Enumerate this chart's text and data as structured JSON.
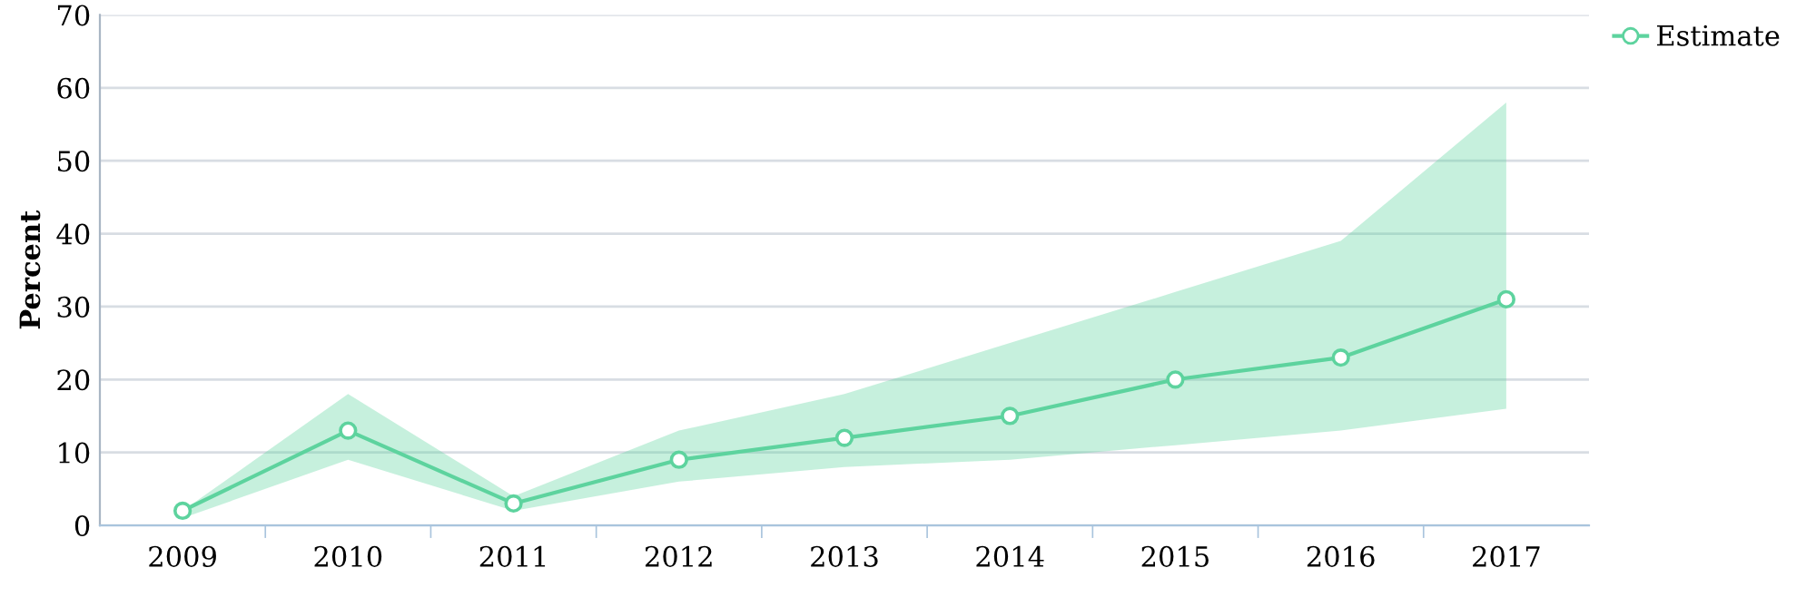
{
  "chart_data": {
    "type": "line",
    "ylabel": "Percent",
    "categories": [
      "2009",
      "2010",
      "2011",
      "2012",
      "2013",
      "2014",
      "2015",
      "2016",
      "2017"
    ],
    "series": [
      {
        "name": "Estimate",
        "color": "#5dd39e",
        "values": [
          2,
          13,
          3,
          9,
          12,
          15,
          20,
          23,
          31
        ],
        "lower": [
          1,
          9,
          2,
          6,
          8,
          9,
          11,
          13,
          16
        ],
        "upper": [
          2,
          18,
          4,
          13,
          18,
          25,
          32,
          39,
          58
        ]
      }
    ],
    "ylim": [
      0,
      70
    ],
    "yticks": [
      0,
      10,
      20,
      30,
      40,
      50,
      60,
      70
    ],
    "grid": "y",
    "legend": "top right",
    "marker": "circle",
    "line_style": "solid"
  }
}
